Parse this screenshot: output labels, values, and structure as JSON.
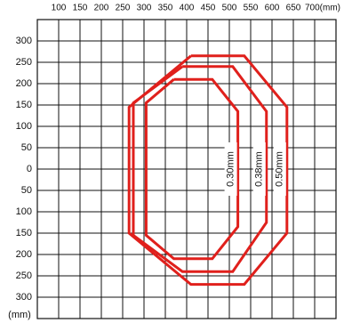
{
  "chart_data": {
    "type": "polygon",
    "x_label": "(mm)",
    "y_label": "(mm)",
    "xlim": [
      50,
      750
    ],
    "xticks": [
      100,
      150,
      200,
      250,
      300,
      350,
      400,
      450,
      500,
      550,
      600,
      650,
      {
        "value": 700,
        "label": "700(mm)"
      }
    ],
    "ylim": [
      -350,
      350
    ],
    "yticks": [
      300,
      250,
      200,
      150,
      100,
      50,
      0,
      {
        "value": -50,
        "label": "50"
      },
      {
        "value": -100,
        "label": "100"
      },
      {
        "value": -150,
        "label": "150"
      },
      {
        "value": -200,
        "label": "200"
      },
      {
        "value": -250,
        "label": "250"
      },
      {
        "value": -300,
        "label": "300"
      }
    ],
    "grid": true,
    "series": [
      {
        "name": "0.30mm",
        "color": "#e0201c",
        "x": [
          370,
          460,
          520,
          520,
          460,
          370,
          305,
          305,
          370
        ],
        "values": [
          210,
          210,
          135,
          -135,
          -210,
          -210,
          -155,
          155,
          210
        ]
      },
      {
        "name": "0.38mm",
        "color": "#e0201c",
        "x": [
          390,
          508,
          587,
          587,
          508,
          390,
          275,
          275,
          390
        ],
        "values": [
          240,
          240,
          135,
          -125,
          -240,
          -240,
          -155,
          155,
          240
        ]
      },
      {
        "name": "0.50mm",
        "color": "#e0201c",
        "x": [
          410,
          535,
          635,
          635,
          535,
          410,
          265,
          265,
          410
        ],
        "values": [
          265,
          265,
          145,
          -150,
          -270,
          -270,
          -150,
          145,
          265
        ]
      }
    ]
  }
}
